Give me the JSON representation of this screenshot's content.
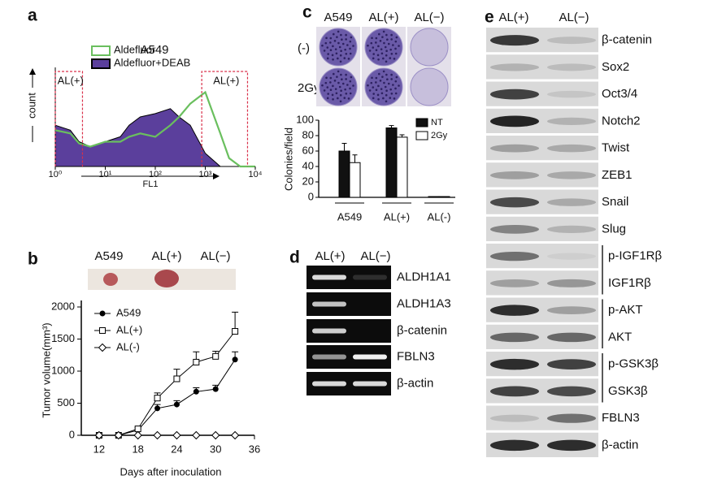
{
  "panel_labels": [
    "a",
    "b",
    "c",
    "d",
    "e"
  ],
  "chart_data": [
    {
      "type": "area",
      "title": "A549",
      "xlabel": "FL1",
      "ylabel": "count",
      "x": [
        1,
        2,
        3,
        5,
        10,
        20,
        30,
        50,
        100,
        200,
        300,
        500,
        1000,
        2000,
        3000,
        5000,
        10000
      ],
      "xlim": [
        1,
        10000
      ],
      "log_x": true,
      "xticks": [
        {
          "value": 1,
          "label": "10⁰"
        },
        {
          "value": 10,
          "label": "10¹"
        },
        {
          "value": 100,
          "label": "10²"
        },
        {
          "value": 1000,
          "label": "10³"
        },
        {
          "value": 10000,
          "label": "10⁴"
        }
      ],
      "ylim": [
        0,
        60
      ],
      "series": [
        {
          "name": "Aldefluor+DEAB",
          "color": "#5b3f9c",
          "values": [
            25,
            22,
            15,
            12,
            15,
            18,
            25,
            30,
            32,
            35,
            30,
            25,
            8,
            0,
            0,
            0,
            0
          ]
        },
        {
          "name": "Aldefluor",
          "color": "#6abf5e",
          "values": [
            22,
            20,
            14,
            12,
            15,
            15,
            18,
            20,
            18,
            25,
            30,
            38,
            45,
            20,
            5,
            0,
            0
          ]
        }
      ],
      "gates": [
        {
          "label": "AL(+)",
          "range": [
            1,
            3.5
          ]
        },
        {
          "label": "AL(+)",
          "range": [
            850,
            7000
          ]
        }
      ]
    },
    {
      "type": "line",
      "xlabel": "Days after inoculation",
      "ylabel": "Tumor volume(mm³)",
      "x": [
        12,
        15,
        18,
        21,
        24,
        27,
        30,
        33
      ],
      "xlim": [
        9.25,
        36
      ],
      "xticks": [
        12,
        18,
        24,
        30,
        36
      ],
      "ylim": [
        0,
        2000
      ],
      "yticks": [
        0,
        500,
        1000,
        1500,
        2000
      ],
      "series": [
        {
          "name": "A549",
          "color": "#000000",
          "marker": "filled-circle",
          "values": [
            0,
            0,
            80,
            420,
            480,
            680,
            720,
            1180
          ],
          "errors": [
            0,
            0,
            20,
            60,
            60,
            60,
            60,
            120
          ]
        },
        {
          "name": "AL(+)",
          "color": "#000000",
          "marker": "open-square",
          "values": [
            0,
            0,
            100,
            580,
            880,
            1140,
            1230,
            1620
          ],
          "errors": [
            0,
            0,
            20,
            80,
            150,
            160,
            80,
            300
          ]
        },
        {
          "name": "AL(-)",
          "color": "#000000",
          "marker": "open-diamond",
          "values": [
            0,
            0,
            0,
            0,
            0,
            0,
            0,
            0
          ],
          "errors": [
            0,
            0,
            0,
            0,
            0,
            0,
            0,
            0
          ]
        }
      ]
    },
    {
      "type": "bar",
      "ylabel": "Colonies/field",
      "categories": [
        "A549",
        "AL(+)",
        "AL(-)"
      ],
      "ylim": [
        0,
        100
      ],
      "yticks": [
        0,
        20,
        40,
        60,
        80,
        100
      ],
      "series": [
        {
          "name": "NT",
          "color": "#111111",
          "values": [
            60,
            90,
            1
          ],
          "errors": [
            10,
            3,
            0
          ]
        },
        {
          "name": "2Gy",
          "color": "#ffffff",
          "values": [
            45,
            78,
            1
          ],
          "errors": [
            10,
            3,
            0
          ]
        }
      ]
    }
  ],
  "tumor_photo": {
    "labels": [
      "A549",
      "AL(+)",
      "AL(−)"
    ]
  },
  "colony_assay": {
    "columns": [
      "A549",
      "AL(+)",
      "AL(−)"
    ],
    "rows": [
      "(-)",
      "2Gy"
    ]
  },
  "rt_pcr": {
    "columns": [
      "AL(+)",
      "AL(−)"
    ],
    "rows": [
      "ALDH1A1",
      "ALDH1A3",
      "β-catenin",
      "FBLN3",
      "β-actin"
    ]
  },
  "western_blot": {
    "columns": [
      "AL(+)",
      "AL(−)"
    ],
    "rows": [
      "β-catenin",
      "Sox2",
      "Oct3/4",
      "Notch2",
      "Twist",
      "ZEB1",
      "Snail",
      "Slug",
      "p-IGF1Rβ",
      "IGF1Rβ",
      "p-AKT",
      "AKT",
      "p-GSK3β",
      "GSK3β",
      "FBLN3",
      "β-actin"
    ]
  }
}
